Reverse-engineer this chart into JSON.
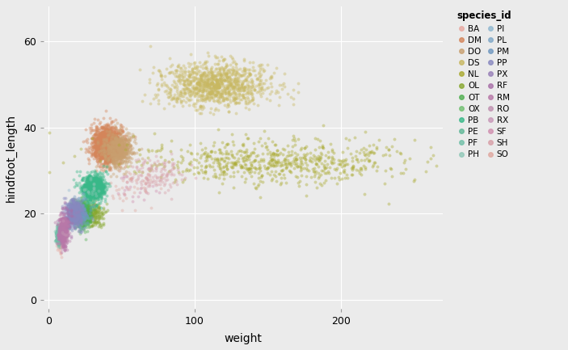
{
  "title": "",
  "xlabel": "weight",
  "ylabel": "hindfoot_length",
  "legend_title": "species_id",
  "xlim": [
    -3,
    270
  ],
  "ylim": [
    -2,
    68
  ],
  "xticks": [
    0,
    100,
    200
  ],
  "yticks": [
    0,
    20,
    40,
    60
  ],
  "background_color": "#ebebeb",
  "grid_color": "#ffffff",
  "species": [
    {
      "id": "BA",
      "color": "#E8A8A0",
      "weight_mean": 8,
      "weight_std": 1.2,
      "hf_mean": 13,
      "hf_std": 1.2,
      "n": 40
    },
    {
      "id": "DM",
      "color": "#D4855A",
      "weight_mean": 40,
      "weight_std": 5,
      "hf_mean": 36,
      "hf_std": 2,
      "n": 1800
    },
    {
      "id": "DO",
      "color": "#C8A070",
      "weight_mean": 48,
      "weight_std": 5,
      "hf_mean": 35,
      "hf_std": 2,
      "n": 600
    },
    {
      "id": "DS",
      "color": "#C8B860",
      "weight_mean": 115,
      "weight_std": 18,
      "hf_mean": 50,
      "hf_std": 2.5,
      "n": 1100
    },
    {
      "id": "NL",
      "color": "#AAAA30",
      "weight_mean": 155,
      "weight_std": 45,
      "hf_mean": 32,
      "hf_std": 2.5,
      "n": 700
    },
    {
      "id": "OL",
      "color": "#88A830",
      "weight_mean": 30,
      "weight_std": 4,
      "hf_mean": 20,
      "hf_std": 1.5,
      "n": 200
    },
    {
      "id": "OT",
      "color": "#50B050",
      "weight_mean": 23,
      "weight_std": 3,
      "hf_mean": 20,
      "hf_std": 1.5,
      "n": 700
    },
    {
      "id": "OX",
      "color": "#70C070",
      "weight_mean": 22,
      "weight_std": 3,
      "hf_mean": 19,
      "hf_std": 1.5,
      "n": 10
    },
    {
      "id": "PB",
      "color": "#38B888",
      "weight_mean": 31,
      "weight_std": 4,
      "hf_mean": 26,
      "hf_std": 1.5,
      "n": 900
    },
    {
      "id": "PE",
      "color": "#60B898",
      "weight_mean": 20,
      "weight_std": 3,
      "hf_mean": 20,
      "hf_std": 1.5,
      "n": 180
    },
    {
      "id": "PF",
      "color": "#70C0A8",
      "weight_mean": 7,
      "weight_std": 1,
      "hf_mean": 15,
      "hf_std": 1,
      "n": 250
    },
    {
      "id": "PH",
      "color": "#90C8B8",
      "weight_mean": 28,
      "weight_std": 4,
      "hf_mean": 26,
      "hf_std": 1.5,
      "n": 25
    },
    {
      "id": "PI",
      "color": "#90B8D0",
      "weight_mean": 18,
      "weight_std": 3,
      "hf_mean": 22,
      "hf_std": 1.5,
      "n": 8
    },
    {
      "id": "PL",
      "color": "#80A8C8",
      "weight_mean": 19,
      "weight_std": 3,
      "hf_mean": 20,
      "hf_std": 1.5,
      "n": 30
    },
    {
      "id": "PM",
      "color": "#7098C0",
      "weight_mean": 21,
      "weight_std": 3,
      "hf_mean": 20,
      "hf_std": 1.5,
      "n": 220
    },
    {
      "id": "PP",
      "color": "#8888C0",
      "weight_mean": 17,
      "weight_std": 2.5,
      "hf_mean": 20,
      "hf_std": 1.5,
      "n": 500
    },
    {
      "id": "PX",
      "color": "#9880B8",
      "weight_mean": 19,
      "weight_std": 3,
      "hf_mean": 19,
      "hf_std": 1.5,
      "n": 6
    },
    {
      "id": "RF",
      "color": "#A870A8",
      "weight_mean": 13,
      "weight_std": 2,
      "hf_mean": 18,
      "hf_std": 1.5,
      "n": 60
    },
    {
      "id": "RM",
      "color": "#B878A8",
      "weight_mean": 10,
      "weight_std": 1.5,
      "hf_mean": 16,
      "hf_std": 1.5,
      "n": 600
    },
    {
      "id": "RO",
      "color": "#C090B0",
      "weight_mean": 10,
      "weight_std": 1.5,
      "hf_mean": 15,
      "hf_std": 1.5,
      "n": 7
    },
    {
      "id": "RX",
      "color": "#C898B8",
      "weight_mean": 11,
      "weight_std": 1.5,
      "hf_mean": 17,
      "hf_std": 1.5,
      "n": 2
    },
    {
      "id": "SF",
      "color": "#D090B0",
      "weight_mean": 58,
      "weight_std": 8,
      "hf_mean": 26,
      "hf_std": 2,
      "n": 25
    },
    {
      "id": "SH",
      "color": "#D8A0A8",
      "weight_mean": 73,
      "weight_std": 10,
      "hf_mean": 29,
      "hf_std": 2,
      "n": 130
    },
    {
      "id": "SO",
      "color": "#E0A8A0",
      "weight_mean": 55,
      "weight_std": 8,
      "hf_mean": 26,
      "hf_std": 2,
      "n": 38
    }
  ],
  "alpha": 0.4,
  "point_size": 8,
  "figsize": [
    7.03,
    4.33
  ],
  "dpi": 100
}
